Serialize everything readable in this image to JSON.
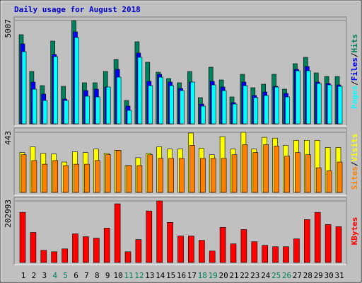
{
  "title": "Daily usage for August 2018",
  "legend_separator": "/",
  "weekend_color": "#00805c",
  "weekend_indices": [
    3,
    4,
    10,
    11,
    17,
    18,
    24,
    25
  ],
  "chart_data": [
    {
      "type": "bar",
      "ylim": [
        0,
        5007
      ],
      "yticks": [
        5007
      ],
      "series": [
        {
          "name": "Hits",
          "color": "#00805c",
          "values": [
            4321,
            2538,
            1852,
            4012,
            1818,
            5007,
            1989,
            1989,
            2538,
            3121,
            1132,
            3978,
            2984,
            2503,
            2195,
            1989,
            2538,
            1269,
            2743,
            2126,
            1303,
            2400,
            1749,
            1920,
            2400,
            1680,
            2915,
            3223,
            2469,
            2297,
            2297
          ]
        },
        {
          "name": "Files",
          "color": "#0000ff",
          "values": [
            3875,
            2023,
            1440,
            3361,
            1200,
            4458,
            1612,
            1680,
            1783,
            2640,
            857,
            3429,
            2058,
            2400,
            2023,
            1715,
            2023,
            960,
            2058,
            1783,
            1029,
            2023,
            1372,
            1543,
            1817,
            1474,
            2640,
            2778,
            2023,
            1955,
            1886
          ]
        },
        {
          "name": "Pages",
          "color": "#00ffff",
          "values": [
            3498,
            1680,
            1132,
            3258,
            1132,
            4184,
            1337,
            1303,
            1783,
            2263,
            652,
            3224,
            1852,
            2263,
            1852,
            1612,
            2023,
            857,
            1886,
            1612,
            960,
            1852,
            1269,
            1372,
            1783,
            1303,
            2572,
            2572,
            1955,
            1886,
            1817
          ]
        }
      ]
    },
    {
      "type": "bar",
      "ylim": [
        0,
        443
      ],
      "yticks": [
        443
      ],
      "series": [
        {
          "name": "Visits",
          "color": "#ffff00",
          "values": [
            294,
            336,
            288,
            283,
            224,
            299,
            294,
            320,
            288,
            310,
            198,
            256,
            288,
            336,
            320,
            320,
            438,
            326,
            278,
            411,
            320,
            443,
            320,
            406,
            400,
            347,
            384,
            384,
            384,
            331,
            331
          ]
        },
        {
          "name": "Sites",
          "color": "#ff8000",
          "values": [
            278,
            235,
            208,
            235,
            198,
            208,
            208,
            235,
            278,
            310,
            198,
            198,
            278,
            251,
            251,
            251,
            347,
            251,
            251,
            251,
            278,
            352,
            294,
            352,
            342,
            267,
            294,
            278,
            182,
            160,
            224
          ]
        }
      ]
    },
    {
      "type": "bar",
      "ylim": [
        0,
        202993
      ],
      "yticks": [
        202993
      ],
      "categories": [
        "1",
        "2",
        "3",
        "4",
        "5",
        "6",
        "7",
        "8",
        "9",
        "10",
        "11",
        "12",
        "13",
        "14",
        "15",
        "16",
        "17",
        "18",
        "19",
        "20",
        "21",
        "22",
        "23",
        "24",
        "25",
        "26",
        "27",
        "28",
        "29",
        "30",
        "31"
      ],
      "series": [
        {
          "name": "KBytes",
          "color": "#ff0000",
          "values": [
            165223,
            99152,
            40133,
            35412,
            44852,
            94430,
            84987,
            80265,
            113315,
            193551,
            35412,
            75544,
            169967,
            202993,
            132200,
            87348,
            87348,
            73184,
            37770,
            115676,
            61380,
            108594,
            68460,
            56657,
            51937,
            51937,
            77905,
            141646,
            165223,
            125117,
            118039
          ]
        }
      ]
    }
  ]
}
